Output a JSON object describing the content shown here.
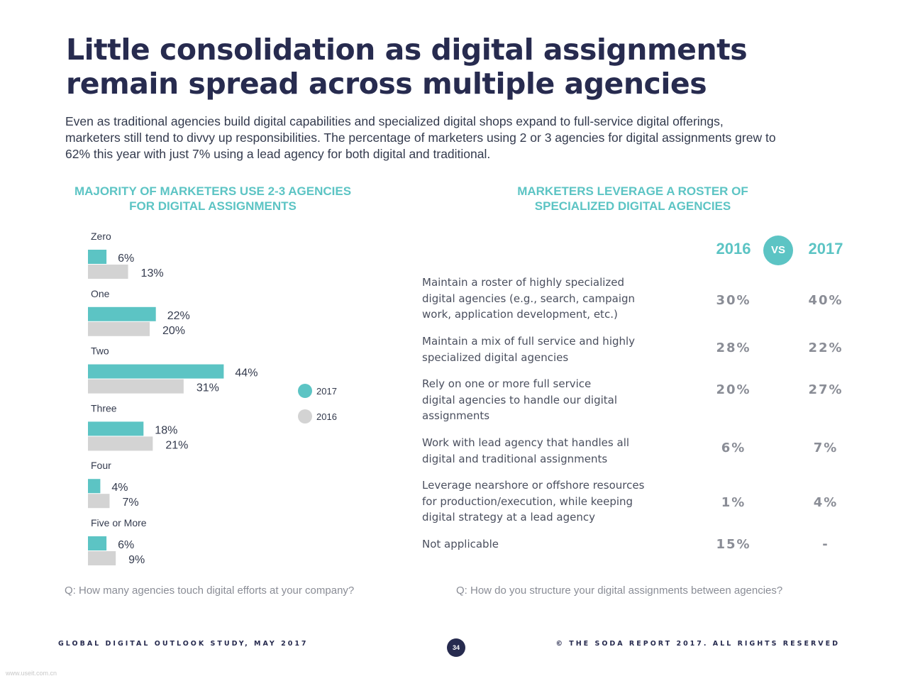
{
  "header": {
    "title_line1": "Little consolidation as digital assignments",
    "title_line2": "remain spread across multiple agencies",
    "intro_line1": "Even as traditional agencies build digital capabilities and specialized digital shops expand to full-service digital offerings,",
    "intro_line2": "marketers still tend to divvy up responsibilities. The percentage of marketers using 2 or 3 agencies for digital assignments grew to",
    "intro_line3": "62% this year with just 7% using a lead agency for both digital and traditional."
  },
  "left_panel": {
    "title_line1": "MAJORITY OF MARKETERS USE 2-3 AGENCIES",
    "title_line2": "FOR DIGITAL ASSIGNMENTS",
    "question": "Q: How many agencies touch digital efforts at your company?"
  },
  "right_panel": {
    "title_line1": "MARKETERS LEVERAGE A ROSTER OF",
    "title_line2": "SPECIALIZED DIGITAL AGENCIES",
    "question": "Q: How do you structure your digital assignments between agencies?"
  },
  "colors": {
    "teal": "#5cc4c4",
    "grey": "#d3d3d3",
    "navy": "#272b4f"
  },
  "chart_data": [
    {
      "type": "bar",
      "orientation": "horizontal",
      "categories": [
        "Zero",
        "One",
        "Two",
        "Three",
        "Four",
        "Five or More"
      ],
      "series": [
        {
          "name": "2017",
          "values": [
            6,
            22,
            44,
            18,
            4,
            6
          ],
          "labels": [
            "6%",
            "22%",
            "44%",
            "18%",
            "4%",
            "6%"
          ],
          "color": "#5cc4c4"
        },
        {
          "name": "2016",
          "values": [
            13,
            20,
            31,
            21,
            7,
            9
          ],
          "labels": [
            "13%",
            "20%",
            "31%",
            "21%",
            "7%",
            "9%"
          ],
          "color": "#d3d3d3"
        }
      ],
      "xlim": [
        0,
        50
      ],
      "grid": false,
      "legend": "right"
    },
    {
      "type": "table",
      "columns": [
        "2016",
        "2017"
      ],
      "vs_label": "VS",
      "rows": [
        {
          "label_lines": [
            "Maintain a roster of highly specialized",
            "digital agencies (e.g., search, campaign",
            "work, application development, etc.)"
          ],
          "v2016": "30%",
          "v2017": "40%"
        },
        {
          "label_lines": [
            "Maintain a mix of full service and highly",
            "specialized digital agencies"
          ],
          "v2016": "28%",
          "v2017": "22%"
        },
        {
          "label_lines": [
            "Rely on one or more full service",
            "digital agencies to handle our digital",
            "assignments"
          ],
          "v2016": "20%",
          "v2017": "27%"
        },
        {
          "label_lines": [
            "Work with lead agency that handles all",
            "digital and traditional assignments"
          ],
          "v2016": "6%",
          "v2017": "7%"
        },
        {
          "label_lines": [
            "Leverage nearshore or offshore resources",
            "for production/execution, while keeping",
            "digital strategy at a lead agency"
          ],
          "v2016": "1%",
          "v2017": "4%"
        },
        {
          "label_lines": [
            "Not applicable"
          ],
          "v2016": "15%",
          "v2017": "-"
        }
      ]
    }
  ],
  "footer": {
    "left": "GLOBAL DIGITAL OUTLOOK STUDY, MAY 2017",
    "page": "34",
    "right": "© THE SODA REPORT 2017. ALL RIGHTS RESERVED"
  },
  "watermark": "www.useit.com.cn"
}
